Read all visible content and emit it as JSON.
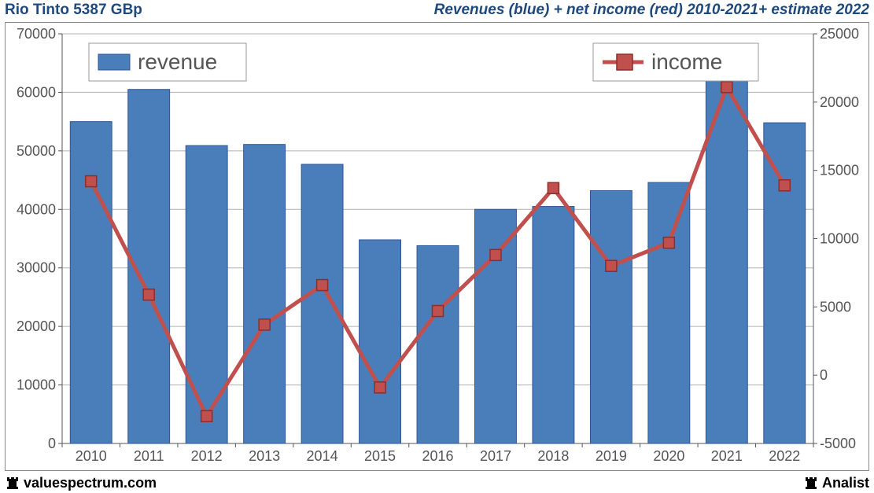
{
  "header": {
    "left_title": "Rio Tinto 5387 GBp",
    "right_title": "Revenues (blue) + net income (red) 2010-2021+ estimate 2022",
    "title_color": "#1f497d",
    "title_fontsize": 19
  },
  "footer": {
    "left_label": "valuespectrum.com",
    "right_label": "Analist",
    "text_color": "#000000",
    "fontsize": 18,
    "rook_icon_color": "#000000"
  },
  "chart": {
    "type": "bar+line-dual-axis",
    "background_color": "#ffffff",
    "border_color": "#888888",
    "grid_color": "#b0b0b0",
    "axis_label_color": "#555555",
    "axis_label_fontsize": 18,
    "categories": [
      "2010",
      "2011",
      "2012",
      "2013",
      "2014",
      "2015",
      "2016",
      "2017",
      "2018",
      "2019",
      "2020",
      "2021",
      "2022"
    ],
    "bar_series": {
      "name": "revenue",
      "axis": "left",
      "color": "#4a7ebb",
      "border_color": "#2f5597",
      "bar_width_ratio": 0.72,
      "values": [
        55000,
        60500,
        50900,
        51100,
        47700,
        34800,
        33800,
        40000,
        40500,
        43200,
        44600,
        63000,
        54800
      ]
    },
    "line_series": {
      "name": "income",
      "axis": "right",
      "color": "#c0504d",
      "line_width": 5,
      "marker": "square",
      "marker_size": 14,
      "marker_border": "#8c2e2b",
      "values": [
        14200,
        5900,
        -3000,
        3700,
        6600,
        -900,
        4700,
        8800,
        13700,
        8000,
        9700,
        21100,
        13900
      ]
    },
    "left_axis": {
      "min": 0,
      "max": 70000,
      "step": 10000
    },
    "right_axis": {
      "min": -5000,
      "max": 25000,
      "step": 5000
    },
    "legend": {
      "fontsize": 28,
      "text_color": "#555555",
      "box_border": "#999999",
      "box_fill": "#ffffff",
      "revenue_box": {
        "label": "revenue",
        "swatch_color": "#4a7ebb"
      },
      "income_box": {
        "label": "income",
        "swatch_color": "#c0504d"
      }
    }
  }
}
